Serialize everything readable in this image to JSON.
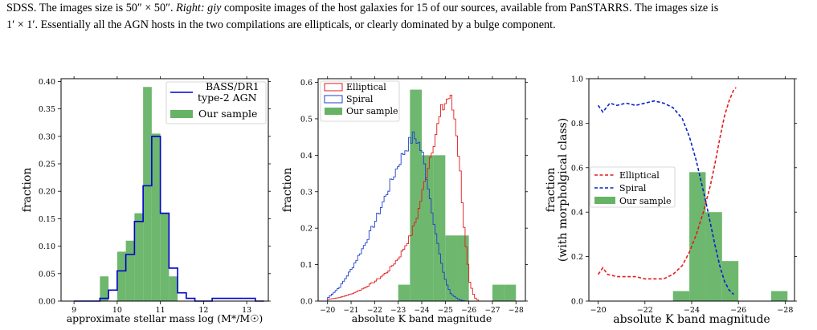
{
  "caption": {
    "line1_a": "SDSS. The images size is 50″ × 50″. ",
    "line1_right": "Right: giy",
    "line1_b": " composite images of the host galaxies for 15 of our sources, available from PanSTARRS. The images size is",
    "line2": "1′ × 1′. Essentially all the AGN hosts in the two compilations are ellipticals, or clearly dominated by a bulge component."
  },
  "colors": {
    "bass": "#0000cc",
    "ours": "#66b366",
    "elliptical": "#e31a1c",
    "spiral": "#1f3fcc",
    "dashed_red": "#e31a1c",
    "dashed_blue": "#0a1fcc"
  },
  "chart_data": [
    {
      "type": "histogram",
      "xlabel": "approximate stellar mass log (M*/M☉)",
      "ylabel": "fraction",
      "xlim": [
        8.7,
        13.5
      ],
      "ylim": [
        0,
        0.405
      ],
      "xticks": [
        9,
        10,
        11,
        12,
        13
      ],
      "yticks": [
        0.0,
        0.05,
        0.1,
        0.15,
        0.2,
        0.25,
        0.3,
        0.35,
        0.4
      ],
      "legend": {
        "placement": "top-right",
        "entries": [
          "BASS/DR1\ntype-2 AGN",
          "Our sample"
        ]
      },
      "series": [
        {
          "name": "BASS/DR1 type-2 AGN",
          "style": "step",
          "edges": [
            9.0,
            9.2,
            9.4,
            9.6,
            9.8,
            10.0,
            10.2,
            10.4,
            10.6,
            10.8,
            11.0,
            11.2,
            11.4,
            11.6,
            11.8,
            12.0,
            12.2,
            12.4,
            12.6,
            12.8,
            13.0,
            13.2,
            13.4
          ],
          "values": [
            0.0,
            0.0,
            0.0,
            0.005,
            0.02,
            0.055,
            0.085,
            0.145,
            0.21,
            0.3,
            0.16,
            0.06,
            0.015,
            0.005,
            0.0,
            0.0,
            0.005,
            0.005,
            0.005,
            0.005,
            0.005,
            0.0
          ]
        },
        {
          "name": "Our sample",
          "style": "bar",
          "edges": [
            9.6,
            9.8,
            10.0,
            10.2,
            10.4,
            10.6,
            10.8,
            11.0,
            11.2,
            11.4,
            11.6,
            11.8
          ],
          "values": [
            0.045,
            0.0,
            0.09,
            0.11,
            0.16,
            0.39,
            0.305,
            0.16,
            0.045,
            0.0,
            0.0
          ]
        }
      ]
    },
    {
      "type": "histogram",
      "xlabel": "absolute K band magnitude",
      "ylabel": "fraction",
      "xlim": [
        -19.6,
        -28.4
      ],
      "ylim": [
        0,
        0.61
      ],
      "xticks": [
        -20,
        -21,
        -22,
        -23,
        -24,
        -25,
        -26,
        -27,
        -28
      ],
      "xticklabels": [
        "−20",
        "−21",
        "−22",
        "−23",
        "−24",
        "−25",
        "−26",
        "−27",
        "−28"
      ],
      "yticks": [
        0.0,
        0.1,
        0.2,
        0.3,
        0.4,
        0.5,
        0.6
      ],
      "legend": {
        "placement": "top-left",
        "entries": [
          "Elliptical",
          "Spiral",
          "Our sample"
        ]
      },
      "series": [
        {
          "name": "Our sample",
          "style": "bar",
          "edges": [
            -23.0,
            -23.5,
            -24.0,
            -24.5,
            -25.0,
            -25.5,
            -26.0,
            -26.5,
            -27.0,
            -27.5,
            -28.0
          ],
          "values": [
            0.045,
            0.58,
            0.4,
            0.4,
            0.18,
            0.18,
            0.0,
            0.0,
            0.045,
            0.045
          ]
        },
        {
          "name": "Elliptical",
          "style": "step",
          "x": [
            -20.0,
            -20.5,
            -21.0,
            -21.5,
            -22.0,
            -22.5,
            -23.0,
            -23.5,
            -23.8,
            -24.0,
            -24.2,
            -24.4,
            -24.6,
            -24.8,
            -25.0,
            -25.1,
            -25.2,
            -25.4,
            -25.6,
            -25.8,
            -26.0,
            -26.2,
            -26.4
          ],
          "values": [
            0.005,
            0.01,
            0.02,
            0.035,
            0.055,
            0.08,
            0.12,
            0.18,
            0.24,
            0.3,
            0.36,
            0.42,
            0.47,
            0.52,
            0.55,
            0.56,
            0.55,
            0.49,
            0.35,
            0.17,
            0.05,
            0.01,
            0.0
          ]
        },
        {
          "name": "Spiral",
          "style": "step",
          "x": [
            -20.0,
            -20.5,
            -21.0,
            -21.5,
            -22.0,
            -22.5,
            -23.0,
            -23.3,
            -23.6,
            -23.8,
            -24.0,
            -24.2,
            -24.4,
            -24.6,
            -24.8,
            -25.0,
            -25.2,
            -25.4,
            -25.6,
            -25.8
          ],
          "values": [
            0.01,
            0.04,
            0.09,
            0.15,
            0.22,
            0.3,
            0.38,
            0.42,
            0.45,
            0.44,
            0.4,
            0.33,
            0.25,
            0.17,
            0.1,
            0.05,
            0.02,
            0.01,
            0.003,
            0.0
          ]
        }
      ]
    },
    {
      "type": "line+bar",
      "xlabel": "absolute K band magnitude",
      "ylabel": "fraction\n(with morpholgical class)",
      "xlim": [
        -19.6,
        -28.4
      ],
      "ylim": [
        0,
        1.0
      ],
      "xticks": [
        -20,
        -22,
        -24,
        -26,
        -28
      ],
      "xticklabels": [
        "−20",
        "−22",
        "−24",
        "−26",
        "−28"
      ],
      "yticks": [
        0.0,
        0.2,
        0.4,
        0.6,
        0.8,
        1.0
      ],
      "legend": {
        "placement": "center-left",
        "entries": [
          "Elliptical",
          "Spiral",
          "Our sample"
        ]
      },
      "series": [
        {
          "name": "Our sample",
          "style": "bar",
          "edges": [
            -23.2,
            -23.9,
            -24.6,
            -25.3,
            -26.0,
            -26.7,
            -27.4,
            -28.1
          ],
          "values": [
            0.045,
            0.58,
            0.4,
            0.18,
            0.0,
            0.0,
            0.045
          ]
        },
        {
          "name": "Elliptical",
          "style": "dashed",
          "x": [
            -20.0,
            -20.2,
            -20.4,
            -20.8,
            -21.2,
            -21.6,
            -22.0,
            -22.4,
            -22.8,
            -23.2,
            -23.6,
            -23.9,
            -24.2,
            -24.5,
            -24.8,
            -25.0,
            -25.2,
            -25.4,
            -25.6,
            -25.8,
            -25.9
          ],
          "y": [
            0.12,
            0.15,
            0.12,
            0.11,
            0.11,
            0.11,
            0.1,
            0.1,
            0.1,
            0.12,
            0.16,
            0.22,
            0.3,
            0.4,
            0.52,
            0.62,
            0.73,
            0.83,
            0.9,
            0.95,
            0.96
          ]
        },
        {
          "name": "Spiral",
          "style": "dashed",
          "x": [
            -20.0,
            -20.2,
            -20.5,
            -20.8,
            -21.2,
            -21.6,
            -22.0,
            -22.4,
            -22.8,
            -23.2,
            -23.6,
            -23.9,
            -24.2,
            -24.4,
            -24.6,
            -24.8,
            -25.0,
            -25.2,
            -25.4,
            -25.6,
            -25.8
          ],
          "y": [
            0.88,
            0.85,
            0.89,
            0.88,
            0.89,
            0.88,
            0.89,
            0.9,
            0.89,
            0.87,
            0.82,
            0.74,
            0.63,
            0.54,
            0.45,
            0.35,
            0.25,
            0.16,
            0.09,
            0.05,
            0.03
          ]
        }
      ]
    }
  ]
}
